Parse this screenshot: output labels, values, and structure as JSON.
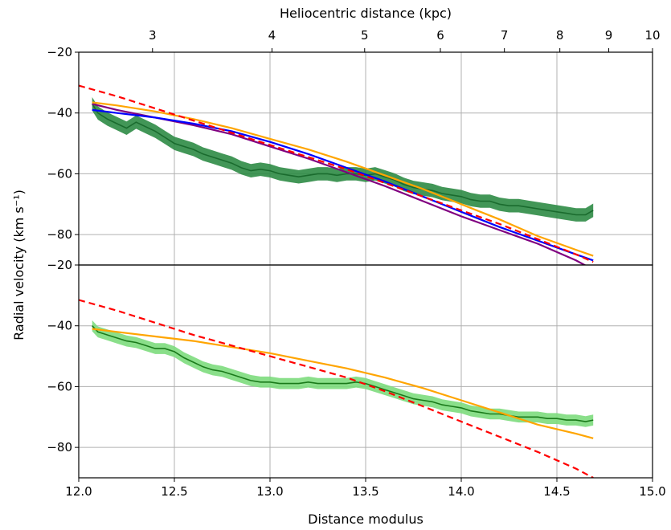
{
  "chart_data": {
    "type": "line",
    "top_axis": {
      "label": "Heliocentric distance (kpc)",
      "ticks": [
        3,
        4,
        5,
        6,
        7,
        8,
        9,
        10
      ]
    },
    "xlabel": "Distance modulus",
    "ylabel": "Radial velocity (km s⁻¹)",
    "xlim": [
      12.0,
      15.0
    ],
    "xticks": [
      12.0,
      12.5,
      13.0,
      13.5,
      14.0,
      14.5,
      15.0
    ],
    "grid": true,
    "panels": [
      {
        "id": "top",
        "ylim": [
          -90,
          -20
        ],
        "yticks": [
          -20,
          -40,
          -60,
          -80
        ],
        "series": [
          {
            "style": "band-line",
            "color": "#1a6b2e",
            "band_color": "#2e8b45",
            "band_halfwidth": 2.2,
            "x": [
              12.07,
              12.1,
              12.15,
              12.2,
              12.25,
              12.3,
              12.35,
              12.4,
              12.45,
              12.5,
              12.55,
              12.6,
              12.65,
              12.7,
              12.75,
              12.8,
              12.85,
              12.9,
              12.95,
              13.0,
              13.05,
              13.1,
              13.15,
              13.2,
              13.25,
              13.3,
              13.35,
              13.4,
              13.45,
              13.5,
              13.55,
              13.6,
              13.65,
              13.7,
              13.75,
              13.8,
              13.85,
              13.9,
              13.95,
              14.0,
              14.05,
              14.1,
              14.15,
              14.2,
              14.25,
              14.3,
              14.35,
              14.4,
              14.45,
              14.5,
              14.55,
              14.6,
              14.65,
              14.69
            ],
            "y": [
              -37,
              -40,
              -42,
              -43.5,
              -45,
              -43,
              -44.5,
              -46,
              -48,
              -50,
              -51,
              -52,
              -53.5,
              -54.5,
              -55.5,
              -56.5,
              -58,
              -59,
              -58.5,
              -59,
              -60,
              -60.5,
              -61,
              -60.5,
              -60,
              -60,
              -60.5,
              -60,
              -60,
              -60.5,
              -60,
              -61,
              -62,
              -63.5,
              -64.5,
              -65,
              -65.5,
              -66.5,
              -67,
              -67.5,
              -68.5,
              -69,
              -69,
              -70,
              -70.5,
              -70.5,
              -71,
              -71.5,
              -72,
              -72.5,
              -73,
              -73.5,
              -73.5,
              -72
            ]
          },
          {
            "style": "solid",
            "color": "#800080",
            "x": [
              12.07,
              12.2,
              12.4,
              12.6,
              12.8,
              13.0,
              13.2,
              13.4,
              13.6,
              13.8,
              14.0,
              14.2,
              14.4,
              14.6,
              14.69
            ],
            "y": [
              -37,
              -39,
              -41.5,
              -44,
              -47,
              -51,
              -55,
              -59.5,
              -64,
              -69,
              -74,
              -78.5,
              -83,
              -88.5,
              -91.5
            ]
          },
          {
            "style": "solid",
            "color": "#0000ff",
            "x": [
              12.07,
              12.2,
              12.4,
              12.6,
              12.8,
              13.0,
              13.2,
              13.4,
              13.6,
              13.8,
              14.0,
              14.2,
              14.4,
              14.6,
              14.69
            ],
            "y": [
              -39,
              -40,
              -41.5,
              -43.5,
              -46,
              -49.5,
              -53.5,
              -58,
              -62.5,
              -67.5,
              -72.5,
              -77.5,
              -82,
              -86.5,
              -88.5
            ]
          },
          {
            "style": "solid",
            "color": "#ffa500",
            "x": [
              12.07,
              12.2,
              12.4,
              12.6,
              12.8,
              13.0,
              13.2,
              13.4,
              13.6,
              13.8,
              14.0,
              14.2,
              14.4,
              14.6,
              14.69
            ],
            "y": [
              -36.5,
              -37.5,
              -39.5,
              -42,
              -45,
              -48.5,
              -52,
              -56,
              -60.5,
              -65,
              -70,
              -75,
              -80.5,
              -85,
              -87
            ]
          },
          {
            "style": "dashed",
            "color": "#ff0000",
            "x": [
              12.0,
              12.2,
              12.4,
              12.6,
              12.8,
              13.0,
              13.2,
              13.4,
              13.6,
              13.8,
              14.0,
              14.2,
              14.4,
              14.6,
              14.69
            ],
            "y": [
              -31,
              -34.5,
              -38.5,
              -42.5,
              -46.5,
              -50.5,
              -54.5,
              -58.5,
              -63,
              -67.5,
              -72,
              -76.5,
              -81.5,
              -86.5,
              -89
            ]
          }
        ]
      },
      {
        "id": "bottom",
        "ylim": [
          -90,
          -20
        ],
        "yticks": [
          -20,
          -40,
          -60,
          -80
        ],
        "series": [
          {
            "style": "band-line",
            "color": "#1a7a1a",
            "band_color": "#7ddc7d",
            "band_halfwidth": 1.8,
            "x": [
              12.07,
              12.1,
              12.15,
              12.2,
              12.25,
              12.3,
              12.35,
              12.4,
              12.45,
              12.5,
              12.55,
              12.6,
              12.65,
              12.7,
              12.75,
              12.8,
              12.85,
              12.9,
              12.95,
              13.0,
              13.05,
              13.1,
              13.15,
              13.2,
              13.25,
              13.3,
              13.35,
              13.4,
              13.45,
              13.5,
              13.55,
              13.6,
              13.65,
              13.7,
              13.75,
              13.8,
              13.85,
              13.9,
              13.95,
              14.0,
              14.05,
              14.1,
              14.15,
              14.2,
              14.25,
              14.3,
              14.35,
              14.4,
              14.45,
              14.5,
              14.55,
              14.6,
              14.65,
              14.69
            ],
            "y": [
              -40,
              -42,
              -43,
              -44,
              -45,
              -45.5,
              -46.5,
              -47.5,
              -47.5,
              -48.5,
              -50.5,
              -52,
              -53.5,
              -54.5,
              -55,
              -56,
              -57,
              -58,
              -58.5,
              -58.5,
              -59,
              -59,
              -59,
              -58.5,
              -59,
              -59,
              -59,
              -59,
              -58.5,
              -59,
              -60,
              -61,
              -62,
              -63,
              -64,
              -64.5,
              -65,
              -66,
              -66.5,
              -67,
              -68,
              -68.5,
              -69,
              -69,
              -69.5,
              -70,
              -70,
              -70,
              -70.5,
              -70.5,
              -71,
              -71,
              -71.5,
              -71
            ]
          },
          {
            "style": "solid",
            "color": "#ffa500",
            "x": [
              12.07,
              12.2,
              12.4,
              12.6,
              12.8,
              13.0,
              13.2,
              13.4,
              13.6,
              13.8,
              14.0,
              14.2,
              14.4,
              14.6,
              14.69
            ],
            "y": [
              -41,
              -42,
              -43.5,
              -45,
              -47,
              -49,
              -51.5,
              -54,
              -57,
              -60.5,
              -64.5,
              -68.5,
              -72.5,
              -75.5,
              -77
            ]
          },
          {
            "style": "dashed",
            "color": "#ff0000",
            "x": [
              12.0,
              12.2,
              12.4,
              12.6,
              12.8,
              13.0,
              13.2,
              13.4,
              13.6,
              13.8,
              14.0,
              14.2,
              14.4,
              14.6,
              14.69
            ],
            "y": [
              -31.5,
              -35,
              -39,
              -43,
              -46.5,
              -50,
              -53.5,
              -57,
              -61.5,
              -66.5,
              -71.5,
              -76.5,
              -81.5,
              -87,
              -90
            ]
          }
        ]
      }
    ]
  }
}
